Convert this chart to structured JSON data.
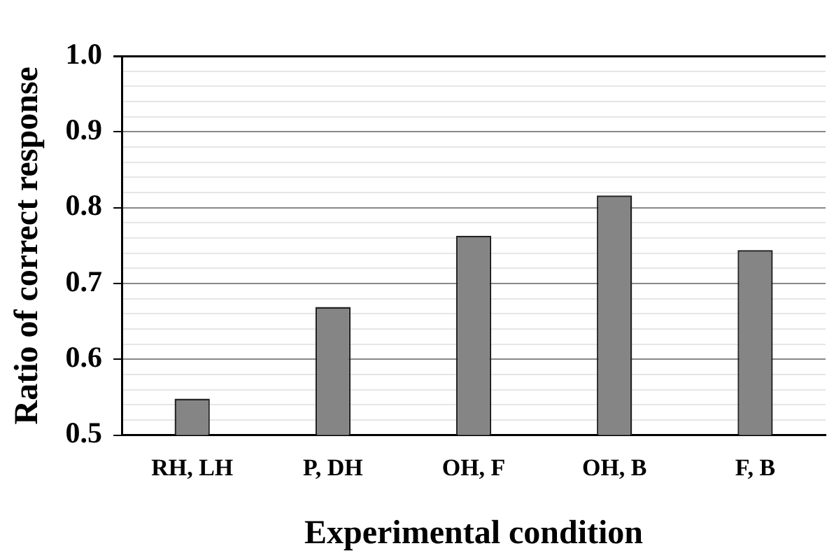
{
  "chart_data": {
    "type": "bar",
    "xlabel": "Experimental condition",
    "ylabel": "Ratio of correct response",
    "categories": [
      "RH, LH",
      "P, DH",
      "OH, F",
      "OH, B",
      "F, B"
    ],
    "values": [
      0.548,
      0.669,
      0.763,
      0.816,
      0.744
    ],
    "color": "#858585",
    "ylim": [
      0.5,
      1.0
    ],
    "yticks": [
      {
        "value": 0.5,
        "label": "0.5"
      },
      {
        "value": 0.52,
        "label": null
      },
      {
        "value": 0.54,
        "label": null
      },
      {
        "value": 0.56,
        "label": null
      },
      {
        "value": 0.58,
        "label": null
      },
      {
        "value": 0.6,
        "label": "0.6"
      },
      {
        "value": 0.62,
        "label": null
      },
      {
        "value": 0.64,
        "label": null
      },
      {
        "value": 0.66,
        "label": null
      },
      {
        "value": 0.68,
        "label": null
      },
      {
        "value": 0.7,
        "label": "0.7"
      },
      {
        "value": 0.72,
        "label": null
      },
      {
        "value": 0.74,
        "label": null
      },
      {
        "value": 0.76,
        "label": null
      },
      {
        "value": 0.78,
        "label": null
      },
      {
        "value": 0.8,
        "label": "0.8"
      },
      {
        "value": 0.82,
        "label": null
      },
      {
        "value": 0.84,
        "label": null
      },
      {
        "value": 0.86,
        "label": null
      },
      {
        "value": 0.88,
        "label": null
      },
      {
        "value": 0.9,
        "label": "0.9"
      },
      {
        "value": 0.92,
        "label": null
      },
      {
        "value": 0.94,
        "label": null
      },
      {
        "value": 0.96,
        "label": null
      },
      {
        "value": 0.98,
        "label": null
      },
      {
        "value": 1.0,
        "label": "1.0"
      }
    ],
    "grid": "y"
  }
}
